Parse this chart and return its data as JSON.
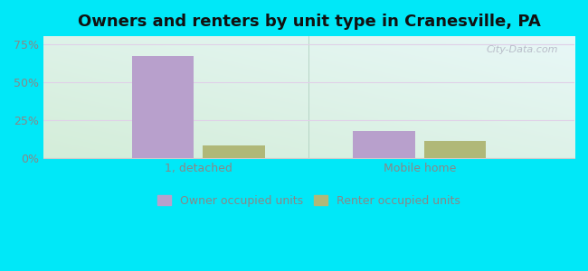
{
  "title": "Owners and renters by unit type in Cranesville, PA",
  "categories": [
    "1, detached",
    "Mobile home"
  ],
  "owner_values": [
    67.0,
    18.0
  ],
  "renter_values": [
    8.0,
    11.0
  ],
  "owner_color": "#b8a0cc",
  "renter_color": "#b0b878",
  "yticks": [
    0,
    25,
    50,
    75
  ],
  "ylim": [
    0,
    80
  ],
  "bar_width": 0.28,
  "bg_outer": "#00e8f8",
  "legend_owner": "Owner occupied units",
  "legend_renter": "Renter occupied units",
  "title_fontsize": 13,
  "tick_color": "#888888",
  "label_color": "#888888",
  "grid_color": "#e0d0e8",
  "watermark": "City-Data.com"
}
